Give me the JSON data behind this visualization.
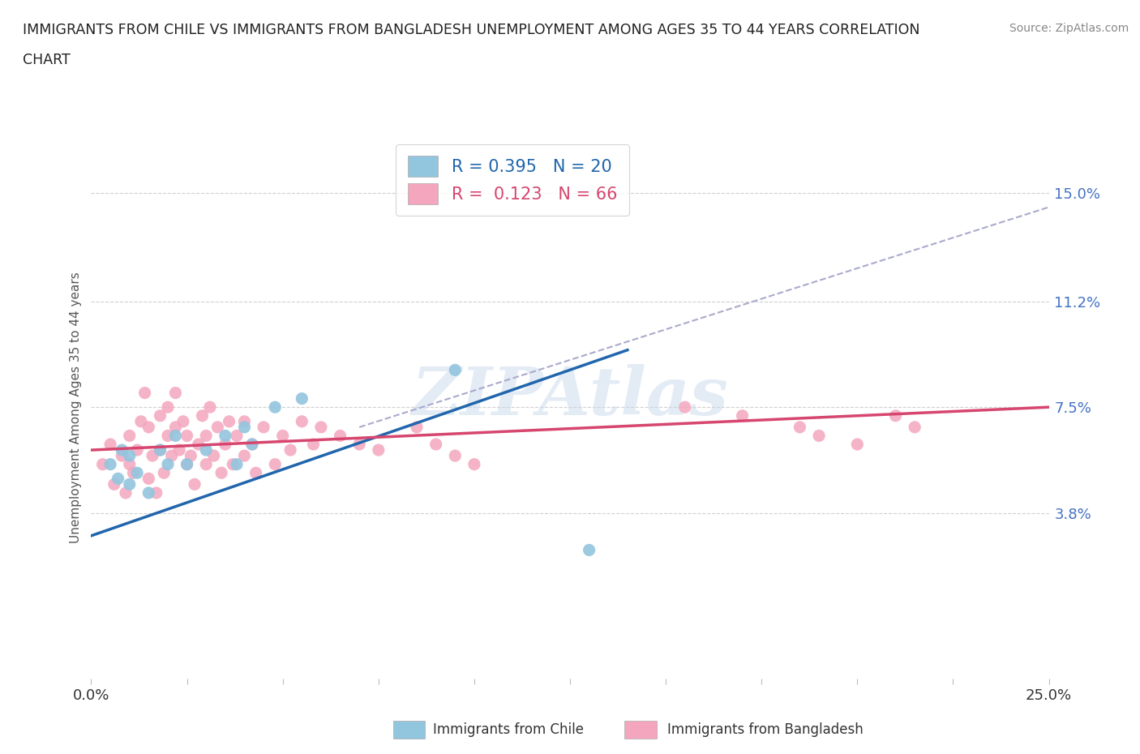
{
  "title_line1": "IMMIGRANTS FROM CHILE VS IMMIGRANTS FROM BANGLADESH UNEMPLOYMENT AMONG AGES 35 TO 44 YEARS CORRELATION",
  "title_line2": "CHART",
  "source": "Source: ZipAtlas.com",
  "ylabel": "Unemployment Among Ages 35 to 44 years",
  "xlim": [
    0.0,
    0.25
  ],
  "ylim": [
    -0.02,
    0.17
  ],
  "y_tick_vals_right": [
    0.038,
    0.075,
    0.112,
    0.15
  ],
  "y_tick_labels_right": [
    "3.8%",
    "7.5%",
    "11.2%",
    "15.0%"
  ],
  "chile_color": "#92c5de",
  "bangladesh_color": "#f4a6be",
  "chile_line_color": "#2166ac",
  "bangladesh_line_color": "#d6466f",
  "dashed_line_color": "#aaaacc",
  "R_chile": 0.395,
  "N_chile": 20,
  "R_bangladesh": 0.123,
  "N_bangladesh": 66,
  "chile_scatter_x": [
    0.005,
    0.007,
    0.008,
    0.01,
    0.01,
    0.012,
    0.015,
    0.018,
    0.02,
    0.022,
    0.025,
    0.03,
    0.035,
    0.038,
    0.04,
    0.042,
    0.048,
    0.055,
    0.095,
    0.13
  ],
  "chile_scatter_y": [
    0.055,
    0.05,
    0.06,
    0.048,
    0.058,
    0.052,
    0.045,
    0.06,
    0.055,
    0.065,
    0.055,
    0.06,
    0.065,
    0.055,
    0.068,
    0.062,
    0.075,
    0.078,
    0.088,
    0.025
  ],
  "bangladesh_scatter_x": [
    0.003,
    0.005,
    0.006,
    0.008,
    0.009,
    0.01,
    0.01,
    0.011,
    0.012,
    0.013,
    0.014,
    0.015,
    0.015,
    0.016,
    0.017,
    0.018,
    0.018,
    0.019,
    0.02,
    0.02,
    0.021,
    0.022,
    0.022,
    0.023,
    0.024,
    0.025,
    0.025,
    0.026,
    0.027,
    0.028,
    0.029,
    0.03,
    0.03,
    0.031,
    0.032,
    0.033,
    0.034,
    0.035,
    0.036,
    0.037,
    0.038,
    0.04,
    0.04,
    0.042,
    0.043,
    0.045,
    0.048,
    0.05,
    0.052,
    0.055,
    0.058,
    0.06,
    0.065,
    0.07,
    0.075,
    0.085,
    0.09,
    0.095,
    0.1,
    0.155,
    0.17,
    0.185,
    0.19,
    0.2,
    0.21,
    0.215
  ],
  "bangladesh_scatter_y": [
    0.055,
    0.062,
    0.048,
    0.058,
    0.045,
    0.055,
    0.065,
    0.052,
    0.06,
    0.07,
    0.08,
    0.05,
    0.068,
    0.058,
    0.045,
    0.06,
    0.072,
    0.052,
    0.065,
    0.075,
    0.058,
    0.068,
    0.08,
    0.06,
    0.07,
    0.055,
    0.065,
    0.058,
    0.048,
    0.062,
    0.072,
    0.055,
    0.065,
    0.075,
    0.058,
    0.068,
    0.052,
    0.062,
    0.07,
    0.055,
    0.065,
    0.058,
    0.07,
    0.062,
    0.052,
    0.068,
    0.055,
    0.065,
    0.06,
    0.07,
    0.062,
    0.068,
    0.065,
    0.062,
    0.06,
    0.068,
    0.062,
    0.058,
    0.055,
    0.075,
    0.072,
    0.068,
    0.065,
    0.062,
    0.072,
    0.068
  ],
  "watermark": "ZIPAtlas",
  "background_color": "#ffffff",
  "grid_color": "#d0d0d0",
  "legend_label_chile": "Immigrants from Chile",
  "legend_label_bangladesh": "Immigrants from Bangladesh"
}
